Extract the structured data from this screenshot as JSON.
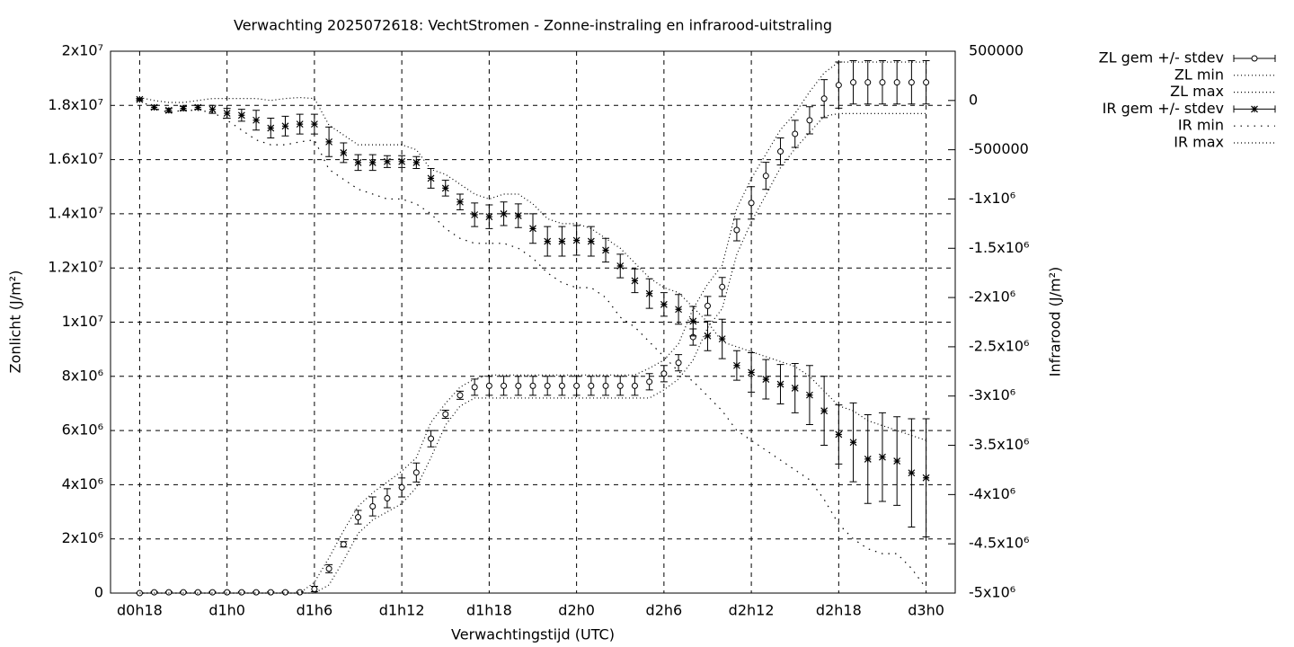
{
  "chart_data": {
    "type": "errorbar-line",
    "title": "Verwachting 2025072618: VechtStromen - Zonne-instraling en infrarood-uitstraling",
    "x_label": "Verwachtingstijd (UTC)",
    "y_label": "Zonlicht (J/m²)",
    "y2_label": "Infrarood (J/m²)",
    "grid": true,
    "legend": "top-right-outside",
    "x": [
      18,
      19,
      20,
      21,
      22,
      23,
      24,
      25,
      26,
      27,
      28,
      29,
      30,
      31,
      32,
      33,
      34,
      35,
      36,
      37,
      38,
      39,
      40,
      41,
      42,
      43,
      44,
      45,
      46,
      47,
      48,
      49,
      50,
      51,
      52,
      53,
      54,
      55,
      56,
      57,
      58,
      59,
      60,
      61,
      62,
      63,
      64,
      65,
      66,
      67,
      68,
      69,
      70,
      71,
      72
    ],
    "xlim": [
      16,
      74
    ],
    "xticks": [
      {
        "value": 18,
        "label": "d0h18"
      },
      {
        "value": 24,
        "label": "d1h0"
      },
      {
        "value": 30,
        "label": "d1h6"
      },
      {
        "value": 36,
        "label": "d1h12"
      },
      {
        "value": 42,
        "label": "d1h18"
      },
      {
        "value": 48,
        "label": "d2h0"
      },
      {
        "value": 54,
        "label": "d2h6"
      },
      {
        "value": 60,
        "label": "d2h12"
      },
      {
        "value": 66,
        "label": "d2h18"
      },
      {
        "value": 72,
        "label": "d3h0"
      }
    ],
    "ylim": [
      0,
      20000000
    ],
    "yticks": [
      0,
      {
        "value": 2000000,
        "label": "2x10⁶"
      },
      {
        "value": 4000000,
        "label": "4x10⁶"
      },
      {
        "value": 6000000,
        "label": "6x10⁶"
      },
      {
        "value": 8000000,
        "label": "8x10⁶"
      },
      {
        "value": 10000000,
        "label": "1x10⁷"
      },
      {
        "value": 12000000,
        "label": "1.2x10⁷"
      },
      {
        "value": 14000000,
        "label": "1.4x10⁷"
      },
      {
        "value": 16000000,
        "label": "1.6x10⁷"
      },
      {
        "value": 18000000,
        "label": "1.8x10⁷"
      },
      {
        "value": 20000000,
        "label": "2x10⁷"
      }
    ],
    "y2lim": [
      -5000000,
      500000
    ],
    "y2ticks": [
      500000,
      0,
      -500000,
      {
        "value": -1000000,
        "label": "-1x10⁶"
      },
      {
        "value": -1500000,
        "label": "-1.5x10⁶"
      },
      {
        "value": -2000000,
        "label": "-2x10⁶"
      },
      {
        "value": -2500000,
        "label": "-2.5x10⁶"
      },
      {
        "value": -3000000,
        "label": "-3x10⁶"
      },
      {
        "value": -3500000,
        "label": "-3.5x10⁶"
      },
      {
        "value": -4000000,
        "label": "-4x10⁶"
      },
      {
        "value": -4500000,
        "label": "-4.5x10⁶"
      },
      {
        "value": -5000000,
        "label": "-5x10⁶"
      }
    ],
    "series": [
      {
        "name": "ZL gem +/- stdev",
        "color": "#000000",
        "style": "errorbars",
        "marker": "circle",
        "values": [
          0,
          30000,
          30000,
          30000,
          30000,
          30000,
          30000,
          30000,
          30000,
          30000,
          30000,
          30000,
          150000,
          900000,
          1800000,
          2800000,
          3200000,
          3500000,
          3900000,
          4450000,
          5700000,
          6600000,
          7300000,
          7600000,
          7650000,
          7650000,
          7650000,
          7650000,
          7650000,
          7650000,
          7650000,
          7650000,
          7650000,
          7650000,
          7650000,
          7800000,
          8100000,
          8500000,
          9450000,
          10600000,
          11300000,
          13400000,
          14400000,
          15400000,
          16300000,
          16950000,
          17450000,
          18250000,
          18750000,
          18850000,
          18850000,
          18850000,
          18850000,
          18850000,
          18850000
        ],
        "errors": [
          10000,
          20000,
          20000,
          20000,
          20000,
          20000,
          20000,
          20000,
          20000,
          20000,
          20000,
          20000,
          100000,
          150000,
          100000,
          250000,
          350000,
          350000,
          350000,
          350000,
          300000,
          150000,
          150000,
          300000,
          350000,
          350000,
          350000,
          350000,
          350000,
          350000,
          350000,
          350000,
          350000,
          350000,
          350000,
          300000,
          300000,
          300000,
          300000,
          350000,
          350000,
          400000,
          600000,
          500000,
          500000,
          500000,
          500000,
          700000,
          850000,
          800000,
          800000,
          800000,
          800000,
          800000,
          800000
        ]
      },
      {
        "name": "ZL min",
        "color": "#000000",
        "style": "dots",
        "values": [
          0,
          0,
          0,
          0,
          0,
          0,
          0,
          0,
          0,
          0,
          0,
          0,
          0,
          300000,
          1200000,
          2200000,
          2700000,
          3000000,
          3300000,
          3900000,
          5000000,
          6200000,
          6900000,
          7200000,
          7200000,
          7200000,
          7200000,
          7200000,
          7200000,
          7200000,
          7200000,
          7200000,
          7200000,
          7200000,
          7200000,
          7200000,
          7500000,
          7900000,
          8600000,
          9800000,
          10500000,
          12500000,
          13700000,
          14700000,
          15700000,
          16400000,
          17000000,
          17600000,
          17700000,
          17700000,
          17700000,
          17700000,
          17700000,
          17700000,
          17700000
        ]
      },
      {
        "name": "ZL max",
        "color": "#000000",
        "style": "dots",
        "values": [
          0,
          0,
          0,
          0,
          0,
          0,
          0,
          0,
          0,
          0,
          0,
          0,
          400000,
          1300000,
          2300000,
          3200000,
          3700000,
          4100000,
          4500000,
          5000000,
          6300000,
          7000000,
          7600000,
          7900000,
          8050000,
          8050000,
          8050000,
          8050000,
          8050000,
          8050000,
          8050000,
          8050000,
          8050000,
          8050000,
          8050000,
          8300000,
          8600000,
          9200000,
          10500000,
          11400000,
          12100000,
          14200000,
          15300000,
          16200000,
          17100000,
          17700000,
          18500000,
          19200000,
          19600000,
          19600000,
          19600000,
          19600000,
          19600000,
          19600000,
          19600000
        ]
      },
      {
        "name": "IR gem +/- stdev",
        "color": "#000000",
        "style": "errorbars",
        "marker": "star",
        "axis": "y2",
        "values": [
          10000,
          -70000,
          -100000,
          -80000,
          -70000,
          -90000,
          -130000,
          -150000,
          -200000,
          -280000,
          -260000,
          -240000,
          -240000,
          -420000,
          -530000,
          -630000,
          -630000,
          -620000,
          -620000,
          -630000,
          -790000,
          -890000,
          -1030000,
          -1160000,
          -1180000,
          -1150000,
          -1170000,
          -1300000,
          -1430000,
          -1430000,
          -1420000,
          -1430000,
          -1520000,
          -1680000,
          -1830000,
          -1960000,
          -2070000,
          -2120000,
          -2240000,
          -2390000,
          -2420000,
          -2690000,
          -2760000,
          -2830000,
          -2880000,
          -2920000,
          -2990000,
          -3150000,
          -3390000,
          -3470000,
          -3640000,
          -3620000,
          -3660000,
          -3780000,
          -3830000
        ],
        "errors": [
          10000,
          20000,
          20000,
          20000,
          20000,
          40000,
          50000,
          60000,
          100000,
          100000,
          100000,
          100000,
          100000,
          150000,
          100000,
          80000,
          80000,
          60000,
          60000,
          60000,
          100000,
          80000,
          80000,
          120000,
          120000,
          120000,
          120000,
          150000,
          150000,
          150000,
          150000,
          150000,
          120000,
          120000,
          120000,
          150000,
          120000,
          150000,
          150000,
          150000,
          200000,
          150000,
          200000,
          200000,
          200000,
          250000,
          300000,
          350000,
          300000,
          400000,
          450000,
          450000,
          450000,
          550000,
          600000
        ]
      },
      {
        "name": "IR min",
        "color": "#000000",
        "style": "sparse-dots",
        "axis": "y2",
        "values": [
          0,
          -80000,
          -120000,
          -100000,
          -100000,
          -120000,
          -200000,
          -300000,
          -400000,
          -450000,
          -450000,
          -420000,
          -400000,
          -700000,
          -800000,
          -900000,
          -950000,
          -1000000,
          -1000000,
          -1050000,
          -1150000,
          -1300000,
          -1400000,
          -1450000,
          -1450000,
          -1450000,
          -1500000,
          -1600000,
          -1750000,
          -1850000,
          -1900000,
          -1900000,
          -2000000,
          -2200000,
          -2300000,
          -2450000,
          -2600000,
          -2750000,
          -2850000,
          -3000000,
          -3150000,
          -3350000,
          -3450000,
          -3550000,
          -3650000,
          -3750000,
          -3850000,
          -4050000,
          -4300000,
          -4450000,
          -4550000,
          -4600000,
          -4600000,
          -4750000,
          -4950000
        ]
      },
      {
        "name": "IR max",
        "color": "#000000",
        "style": "dots",
        "axis": "y2",
        "values": [
          30000,
          0,
          -20000,
          -20000,
          0,
          20000,
          20000,
          20000,
          20000,
          0,
          20000,
          30000,
          20000,
          -250000,
          -350000,
          -450000,
          -450000,
          -450000,
          -450000,
          -500000,
          -700000,
          -750000,
          -850000,
          -950000,
          -1000000,
          -950000,
          -950000,
          -1050000,
          -1200000,
          -1250000,
          -1250000,
          -1300000,
          -1400000,
          -1500000,
          -1650000,
          -1800000,
          -1900000,
          -1950000,
          -2100000,
          -2250000,
          -2450000,
          -2500000,
          -2550000,
          -2600000,
          -2650000,
          -2700000,
          -2800000,
          -2950000,
          -3100000,
          -3150000,
          -3250000,
          -3300000,
          -3350000,
          -3400000,
          -3450000
        ]
      }
    ]
  }
}
